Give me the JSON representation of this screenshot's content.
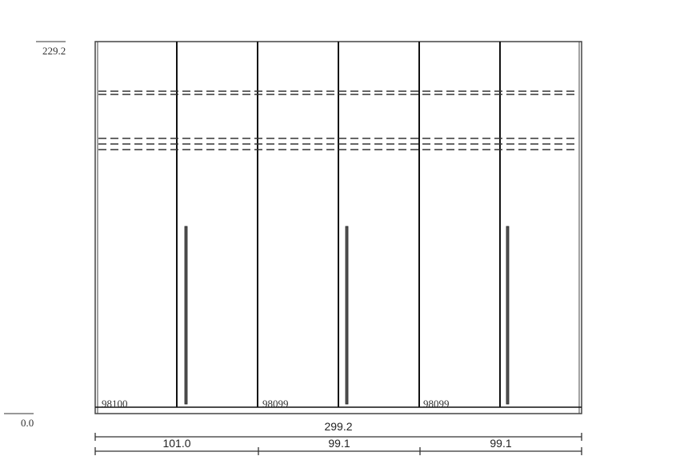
{
  "height_markers": {
    "top": "229.2",
    "bottom": "0.0"
  },
  "doors": [
    {
      "code": "98100"
    },
    {
      "code": "98099"
    },
    {
      "code": "98099"
    }
  ],
  "dimensions": {
    "total_width": "299.2",
    "sections": [
      "101.0",
      "99.1",
      "99.1"
    ]
  }
}
